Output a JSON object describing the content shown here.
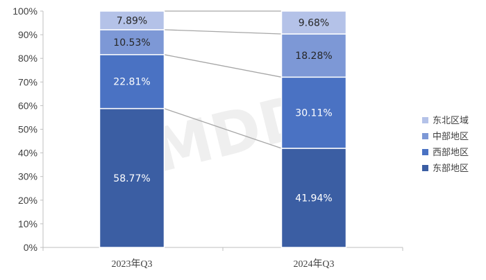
{
  "chart_data": {
    "type": "bar",
    "stacked": true,
    "stacked_percent": true,
    "categories": [
      "2023年Q3",
      "2024年Q3"
    ],
    "series": [
      {
        "name": "东部地区",
        "values": [
          58.77,
          41.94
        ],
        "labels": [
          "58.77%",
          "41.94%"
        ],
        "color": "#3b5ea3",
        "label_color": "#ffffff"
      },
      {
        "name": "西部地区",
        "values": [
          22.81,
          30.11
        ],
        "labels": [
          "22.81%",
          "30.11%"
        ],
        "color": "#4a72c3",
        "label_color": "#ffffff"
      },
      {
        "name": "中部地区",
        "values": [
          10.53,
          18.28
        ],
        "labels": [
          "10.53%",
          "18.28%"
        ],
        "color": "#7d98d6",
        "label_color": "#262626"
      },
      {
        "name": "东北区域",
        "values": [
          7.89,
          9.68
        ],
        "labels": [
          "7.89%",
          "9.68%"
        ],
        "color": "#b4c2e8",
        "label_color": "#262626"
      }
    ],
    "ylim": [
      0,
      100
    ],
    "yticks": [
      "0%",
      "10%",
      "20%",
      "30%",
      "40%",
      "50%",
      "60%",
      "70%",
      "80%",
      "90%",
      "100%"
    ],
    "series_lines": true,
    "legend_position": "right",
    "grid": false
  },
  "watermark": "MDDi"
}
